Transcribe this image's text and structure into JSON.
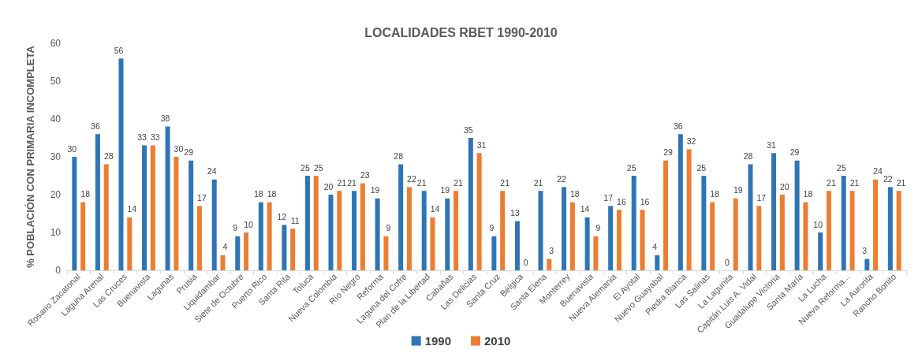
{
  "chart_data": {
    "type": "bar",
    "title": "LOCALIDADES RBET 1990-2010",
    "ylabel": "% POBLACIÓN CON PRIMARIA INCOMPLETA",
    "categories": [
      "Rosario Zacatonal",
      "Laguna Arenal",
      "Las Cruces",
      "Buenavista",
      "Lagunas",
      "Prusia",
      "Liquidambar",
      "Siete de Octubre",
      "Puerto Rico",
      "Santa Rita",
      "Toluca",
      "Nueva Colombia",
      "Río Negro",
      "Reforma",
      "Laguna del Cofre",
      "Plan de la Libertad",
      "Cabañas",
      "Las Delicias",
      "Santa Cruz",
      "Bélgica",
      "Santa Elena",
      "Monterrey",
      "Buenavista",
      "Nueva Alemania",
      "El Ayotal",
      "Nuevo Guayabal",
      "Piedra Blanca",
      "Las Salinas",
      "La Lagunita",
      "Capitán Luis A. Vidal",
      "Guadalupe Victoria",
      "Santa María",
      "La Lucha",
      "Nueva Reforma...",
      "La Aurorita",
      "Rancho Bonito"
    ],
    "series": [
      {
        "name": "1990",
        "color": "#2e75b6",
        "values": [
          30,
          36,
          56,
          33,
          38,
          29,
          24,
          9,
          18,
          12,
          25,
          20,
          21,
          19,
          28,
          21,
          19,
          35,
          9,
          13,
          21,
          22,
          14,
          17,
          25,
          4,
          36,
          25,
          0,
          28,
          31,
          29,
          10,
          25,
          3,
          22
        ]
      },
      {
        "name": "2010",
        "color": "#ed7d31",
        "values": [
          18,
          28,
          14,
          33,
          30,
          17,
          4,
          10,
          18,
          11,
          25,
          21,
          23,
          9,
          22,
          14,
          21,
          31,
          21,
          0,
          3,
          18,
          9,
          16,
          16,
          29,
          32,
          18,
          19,
          17,
          20,
          18,
          21,
          21,
          24,
          21
        ]
      }
    ],
    "ylim": [
      0,
      60
    ],
    "yticks": [
      0,
      10,
      20,
      30,
      40,
      50,
      60
    ],
    "grid": false,
    "legend": "bottom",
    "data_labels": true
  }
}
